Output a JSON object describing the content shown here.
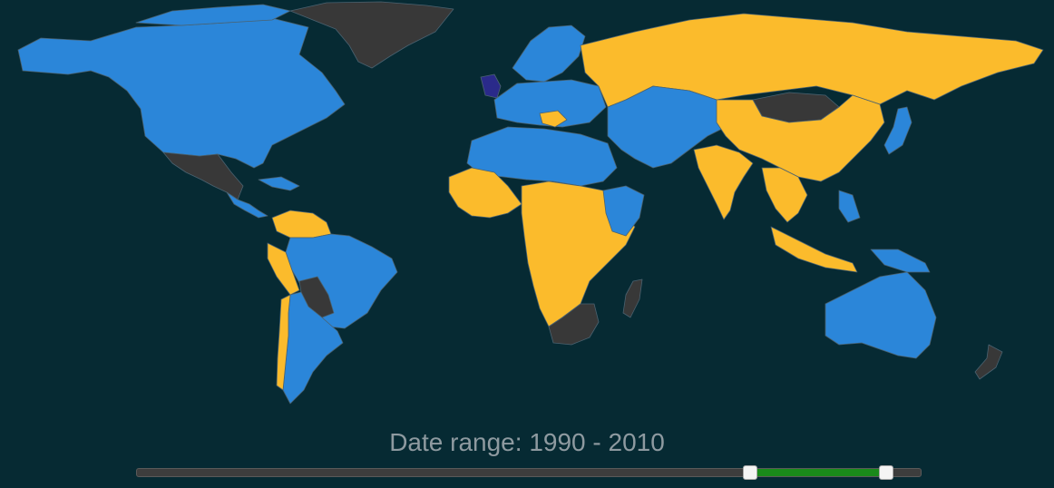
{
  "colors": {
    "background": "#062a33",
    "category_blue": "#2b86d9",
    "category_yellow": "#fbbb2c",
    "no_data": "#383838",
    "highlight": "#2a2a8a",
    "slider_fill": "#1a8a1a"
  },
  "range": {
    "prefix": "Date range: ",
    "start": 1990,
    "end": 2010,
    "separator": " - ",
    "min": 1900,
    "max": 2015
  }
}
